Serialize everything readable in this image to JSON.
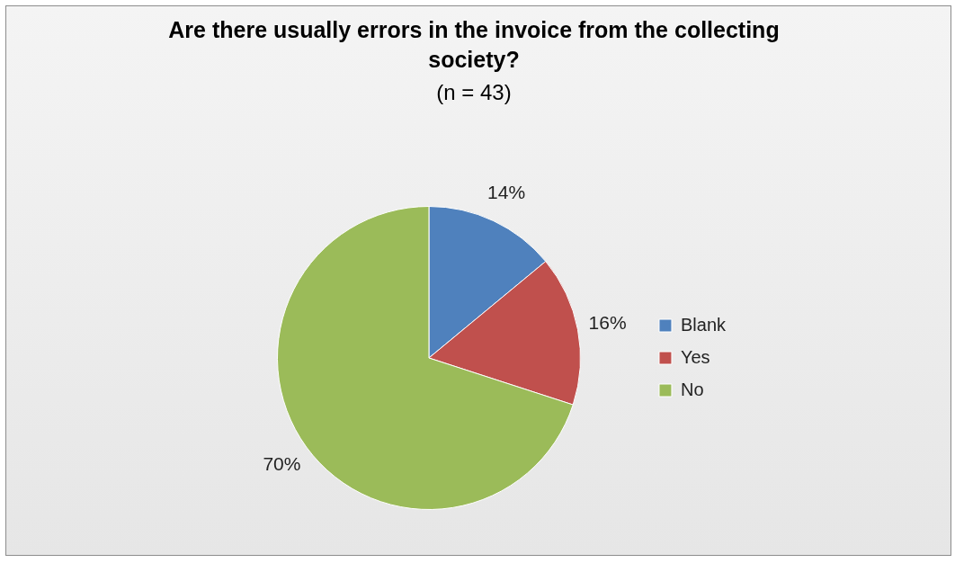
{
  "chart_data": {
    "type": "pie",
    "title": "Are there usually errors in the invoice from the collecting society?",
    "subtitle": "(n = 43)",
    "categories": [
      "Blank",
      "Yes",
      "No"
    ],
    "values": [
      14,
      16,
      70
    ],
    "colors": [
      "#4f81bd",
      "#c0504d",
      "#9bbb59"
    ],
    "value_labels": [
      "14%",
      "16%",
      "70%"
    ],
    "legend": "right"
  }
}
